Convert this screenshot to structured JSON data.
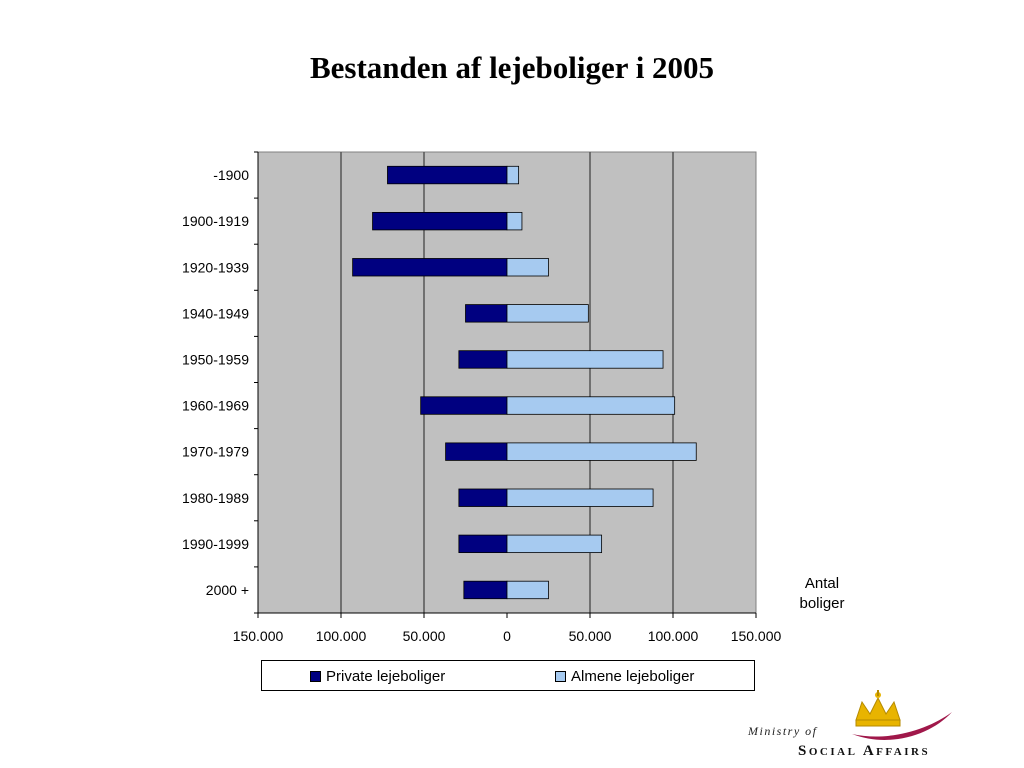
{
  "slide": {
    "title": "Bestanden af lejeboliger i 2005"
  },
  "chart_data": {
    "type": "bar",
    "orientation": "horizontal",
    "stacked": "diverging",
    "title": "Bestanden af lejeboliger i 2005",
    "xlabel": "Antal boliger",
    "ylabel": "",
    "xlim": [
      -150000,
      150000
    ],
    "x_ticks": [
      -150000,
      -100000,
      -50000,
      0,
      50000,
      100000,
      150000
    ],
    "x_tick_labels": [
      "150.000",
      "100.000",
      "50.000",
      "0",
      "50.000",
      "100.000",
      "150.000"
    ],
    "categories": [
      "-1900",
      "1900-1919",
      "1920-1939",
      "1940-1949",
      "1950-1959",
      "1960-1969",
      "1970-1979",
      "1980-1989",
      "1990-1999",
      "2000 +"
    ],
    "series": [
      {
        "name": "Private lejeboliger",
        "color": "#000080",
        "direction": "left",
        "values": [
          72000,
          81000,
          93000,
          25000,
          29000,
          52000,
          37000,
          29000,
          29000,
          26000
        ]
      },
      {
        "name": "Almene lejeboliger",
        "color": "#a6caf0",
        "direction": "right",
        "values": [
          7000,
          9000,
          25000,
          49000,
          94000,
          101000,
          114000,
          88000,
          57000,
          25000
        ]
      }
    ],
    "grid": true,
    "plot_background": "#c0c0c0",
    "legend_position": "bottom"
  },
  "unit_label": {
    "line1": "Antal",
    "line2": "boliger"
  },
  "logo": {
    "line1": "Ministry of",
    "line2": "Social Affairs"
  }
}
